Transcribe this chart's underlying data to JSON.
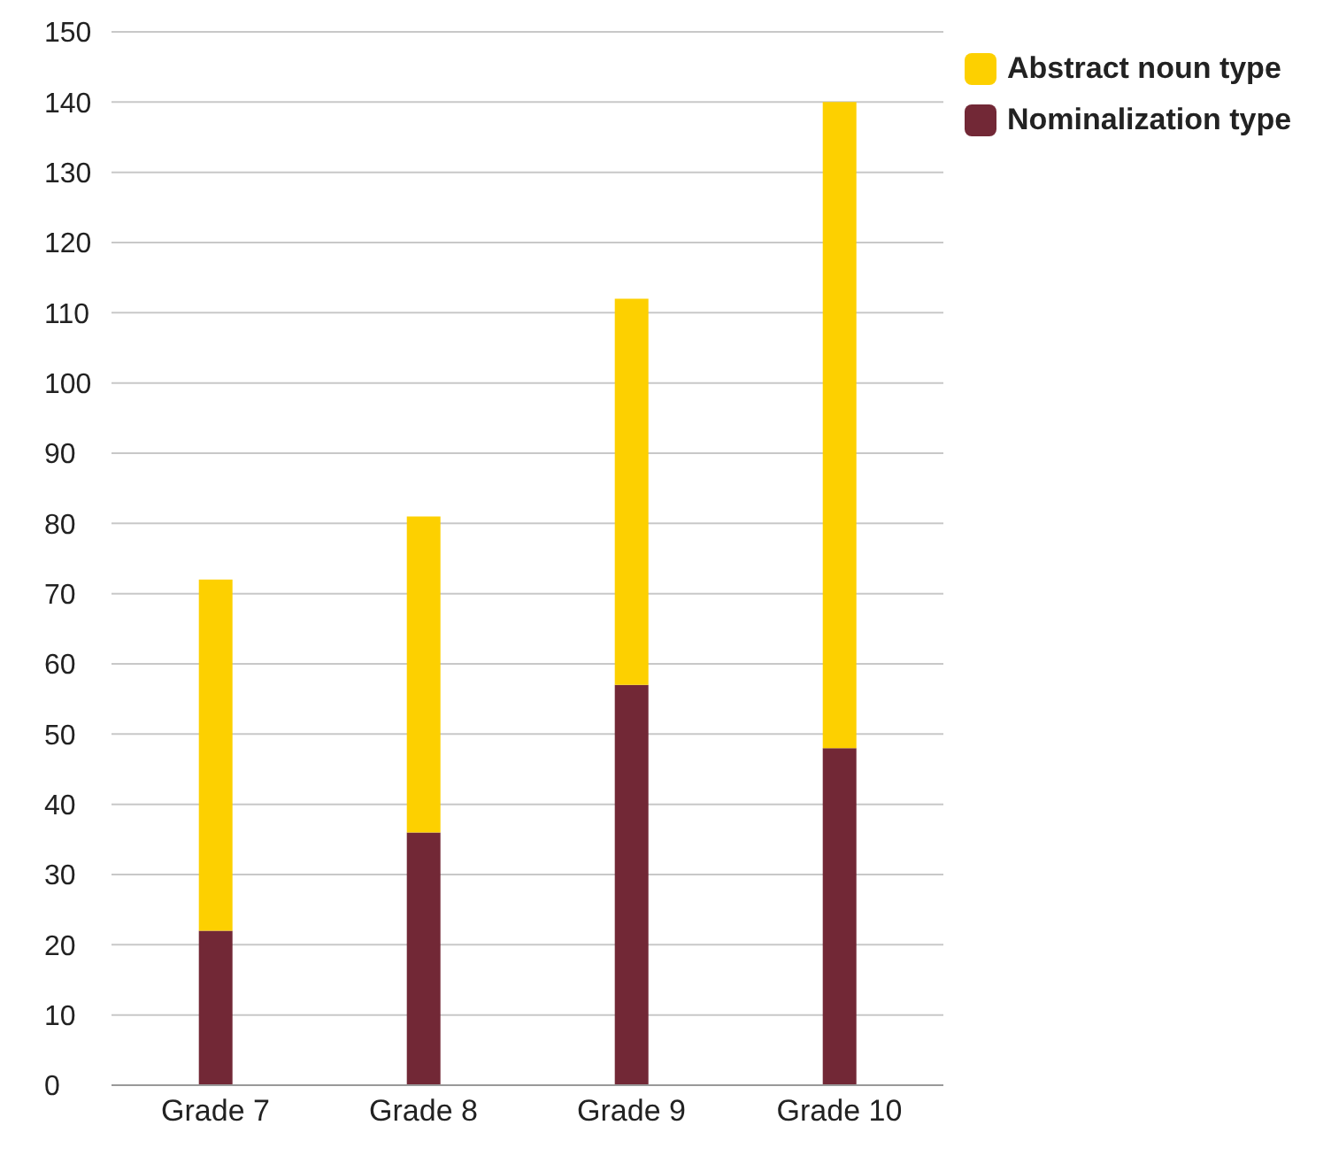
{
  "chart_data": {
    "type": "bar",
    "stacked": true,
    "categories": [
      "Grade 7",
      "Grade 8",
      "Grade 9",
      "Grade 10"
    ],
    "series": [
      {
        "name": "Nominalization type",
        "color": "#722836",
        "values": [
          22,
          36,
          57,
          48
        ]
      },
      {
        "name": "Abstract noun type",
        "color": "#fdd000",
        "values": [
          50,
          45,
          55,
          92
        ]
      }
    ],
    "ylim": [
      0,
      150
    ],
    "yticks": [
      0,
      10,
      20,
      30,
      40,
      50,
      60,
      70,
      80,
      90,
      100,
      110,
      120,
      130,
      140,
      150
    ],
    "grid": "y",
    "legend": "top right"
  }
}
